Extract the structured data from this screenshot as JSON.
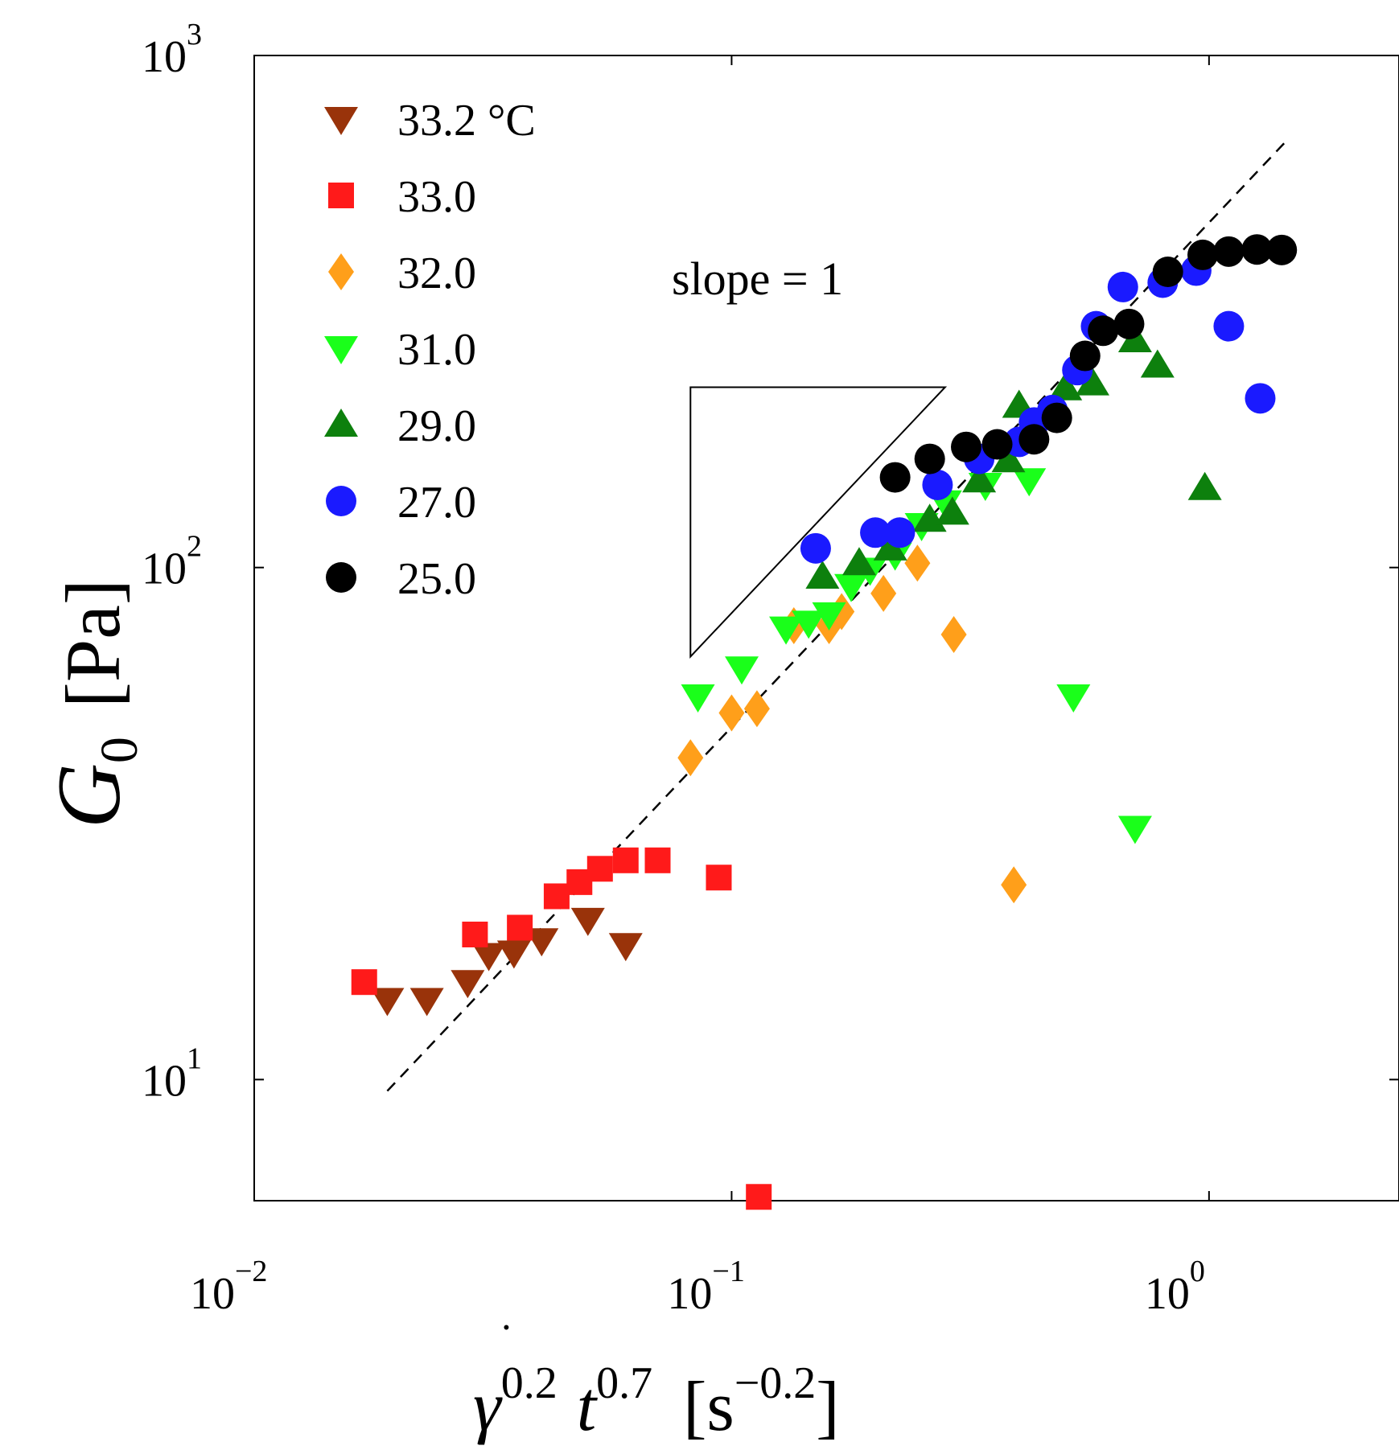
{
  "chart_data": {
    "type": "scatter",
    "x_scale": "log",
    "y_scale": "log",
    "xlim": [
      0.01,
      2.5
    ],
    "ylim": [
      5.8,
      1000
    ],
    "x_ticks": [
      {
        "value": 0.01,
        "base": "10",
        "exp": "−2"
      },
      {
        "value": 0.1,
        "base": "10",
        "exp": "−1"
      },
      {
        "value": 1,
        "base": "10",
        "exp": "0"
      }
    ],
    "y_ticks": [
      {
        "value": 10,
        "base": "10",
        "exp": "1"
      },
      {
        "value": 100,
        "base": "10",
        "exp": "2"
      },
      {
        "value": 1000,
        "base": "10",
        "exp": "3"
      }
    ],
    "xlabel": {
      "base": "γ",
      "exp1": "0.2",
      "var": "t",
      "exp2": "0.7",
      "unit_open": "[s",
      "unit_exp": "−0.2",
      "unit_close": "]"
    },
    "ylabel": {
      "var": "G",
      "sub": "0",
      "unit": "[Pa]"
    },
    "legend_placement": "top-left",
    "annotation": "slope = 1",
    "slope_triangle": {
      "x1": 0.082,
      "y1": 225,
      "x2": 0.28,
      "y_low": 67,
      "slope": 1
    },
    "reference_line": {
      "slope": 1,
      "x": [
        0.019,
        1.45
      ],
      "y": [
        9.5,
        680
      ],
      "style": "dashed"
    },
    "series": [
      {
        "name": "33.2 °C",
        "marker": "triangle-down",
        "color": "#99330a",
        "points": [
          [
            0.019,
            14.3
          ],
          [
            0.023,
            14.3
          ],
          [
            0.028,
            15.5
          ],
          [
            0.031,
            17.5
          ],
          [
            0.035,
            17.7
          ],
          [
            0.04,
            18.7
          ],
          [
            0.05,
            20.5
          ],
          [
            0.06,
            18.3
          ]
        ]
      },
      {
        "name": "33.0",
        "marker": "square",
        "color": "#ff1a1a",
        "points": [
          [
            0.017,
            15.5
          ],
          [
            0.029,
            19.2
          ],
          [
            0.036,
            19.8
          ],
          [
            0.043,
            22.8
          ],
          [
            0.048,
            24.3
          ],
          [
            0.053,
            25.8
          ],
          [
            0.06,
            26.8
          ],
          [
            0.07,
            26.8
          ],
          [
            0.094,
            24.8
          ],
          [
            0.114,
            5.9
          ]
        ]
      },
      {
        "name": "32.0",
        "marker": "diamond",
        "color": "#ff9f1a",
        "points": [
          [
            0.082,
            42.5
          ],
          [
            0.1,
            52
          ],
          [
            0.113,
            53
          ],
          [
            0.135,
            77
          ],
          [
            0.16,
            77
          ],
          [
            0.17,
            82
          ],
          [
            0.208,
            89
          ],
          [
            0.245,
            102
          ],
          [
            0.292,
            74
          ],
          [
            0.39,
            24
          ]
        ]
      },
      {
        "name": "31.0",
        "marker": "triangle-down",
        "color": "#1aff1a",
        "points": [
          [
            0.085,
            56
          ],
          [
            0.105,
            63.5
          ],
          [
            0.13,
            76
          ],
          [
            0.145,
            78
          ],
          [
            0.16,
            81
          ],
          [
            0.178,
            92
          ],
          [
            0.195,
            99
          ],
          [
            0.22,
            106
          ],
          [
            0.25,
            121
          ],
          [
            0.28,
            134
          ],
          [
            0.34,
            145
          ],
          [
            0.42,
            148
          ],
          [
            0.52,
            56
          ],
          [
            0.7,
            31
          ]
        ]
      },
      {
        "name": "29.0",
        "marker": "triangle-up",
        "color": "#0d800d",
        "points": [
          [
            0.155,
            96
          ],
          [
            0.185,
            102
          ],
          [
            0.215,
            109
          ],
          [
            0.26,
            124
          ],
          [
            0.29,
            128
          ],
          [
            0.33,
            148
          ],
          [
            0.38,
            162
          ],
          [
            0.4,
            207
          ],
          [
            0.5,
            224
          ],
          [
            0.57,
            229
          ],
          [
            0.7,
            278
          ],
          [
            0.78,
            248
          ],
          [
            0.98,
            143
          ]
        ]
      },
      {
        "name": "27.0",
        "marker": "circle",
        "color": "#1a1aff",
        "points": [
          [
            0.15,
            109
          ],
          [
            0.2,
            117
          ],
          [
            0.225,
            117
          ],
          [
            0.27,
            145
          ],
          [
            0.33,
            163
          ],
          [
            0.4,
            176
          ],
          [
            0.43,
            192
          ],
          [
            0.47,
            203
          ],
          [
            0.53,
            243
          ],
          [
            0.58,
            296
          ],
          [
            0.66,
            353
          ],
          [
            0.8,
            360
          ],
          [
            0.94,
            380
          ],
          [
            1.1,
            296
          ],
          [
            1.28,
            214
          ]
        ]
      },
      {
        "name": "25.0",
        "marker": "circle",
        "color": "#000000",
        "points": [
          [
            0.22,
            150
          ],
          [
            0.26,
            163
          ],
          [
            0.31,
            172
          ],
          [
            0.36,
            174
          ],
          [
            0.43,
            178
          ],
          [
            0.48,
            196
          ],
          [
            0.55,
            259
          ],
          [
            0.6,
            290
          ],
          [
            0.68,
            299
          ],
          [
            0.82,
            378
          ],
          [
            0.97,
            408
          ],
          [
            1.1,
            414
          ],
          [
            1.26,
            418
          ],
          [
            1.42,
            417
          ]
        ]
      }
    ]
  }
}
